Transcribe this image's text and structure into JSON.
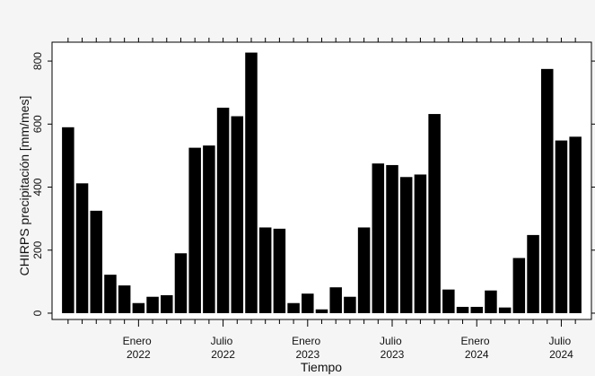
{
  "chart_data": {
    "type": "bar",
    "x_label": "Tiempo",
    "y_label": "CHIRPS precipitación [mm/mes]",
    "categories": [
      null,
      null,
      null,
      null,
      null,
      "Enero 2022",
      null,
      null,
      null,
      null,
      null,
      "Julio 2022",
      null,
      null,
      null,
      null,
      null,
      "Enero 2023",
      null,
      null,
      null,
      null,
      null,
      "Julio 2023",
      null,
      null,
      null,
      null,
      null,
      "Enero 2024",
      null,
      null,
      null,
      null,
      null,
      "Julio 2024",
      null
    ],
    "values": [
      590,
      412,
      325,
      122,
      88,
      32,
      52,
      57,
      190,
      525,
      532,
      652,
      625,
      827,
      272,
      268,
      32,
      62,
      12,
      82,
      52,
      272,
      475,
      470,
      432,
      440,
      632,
      75,
      20,
      20,
      72,
      18,
      175,
      248,
      775,
      548,
      560
    ],
    "color": "#000000",
    "ylim": [
      -20,
      860
    ],
    "yticks": [
      0,
      200,
      400,
      600,
      800
    ],
    "grid": false
  }
}
